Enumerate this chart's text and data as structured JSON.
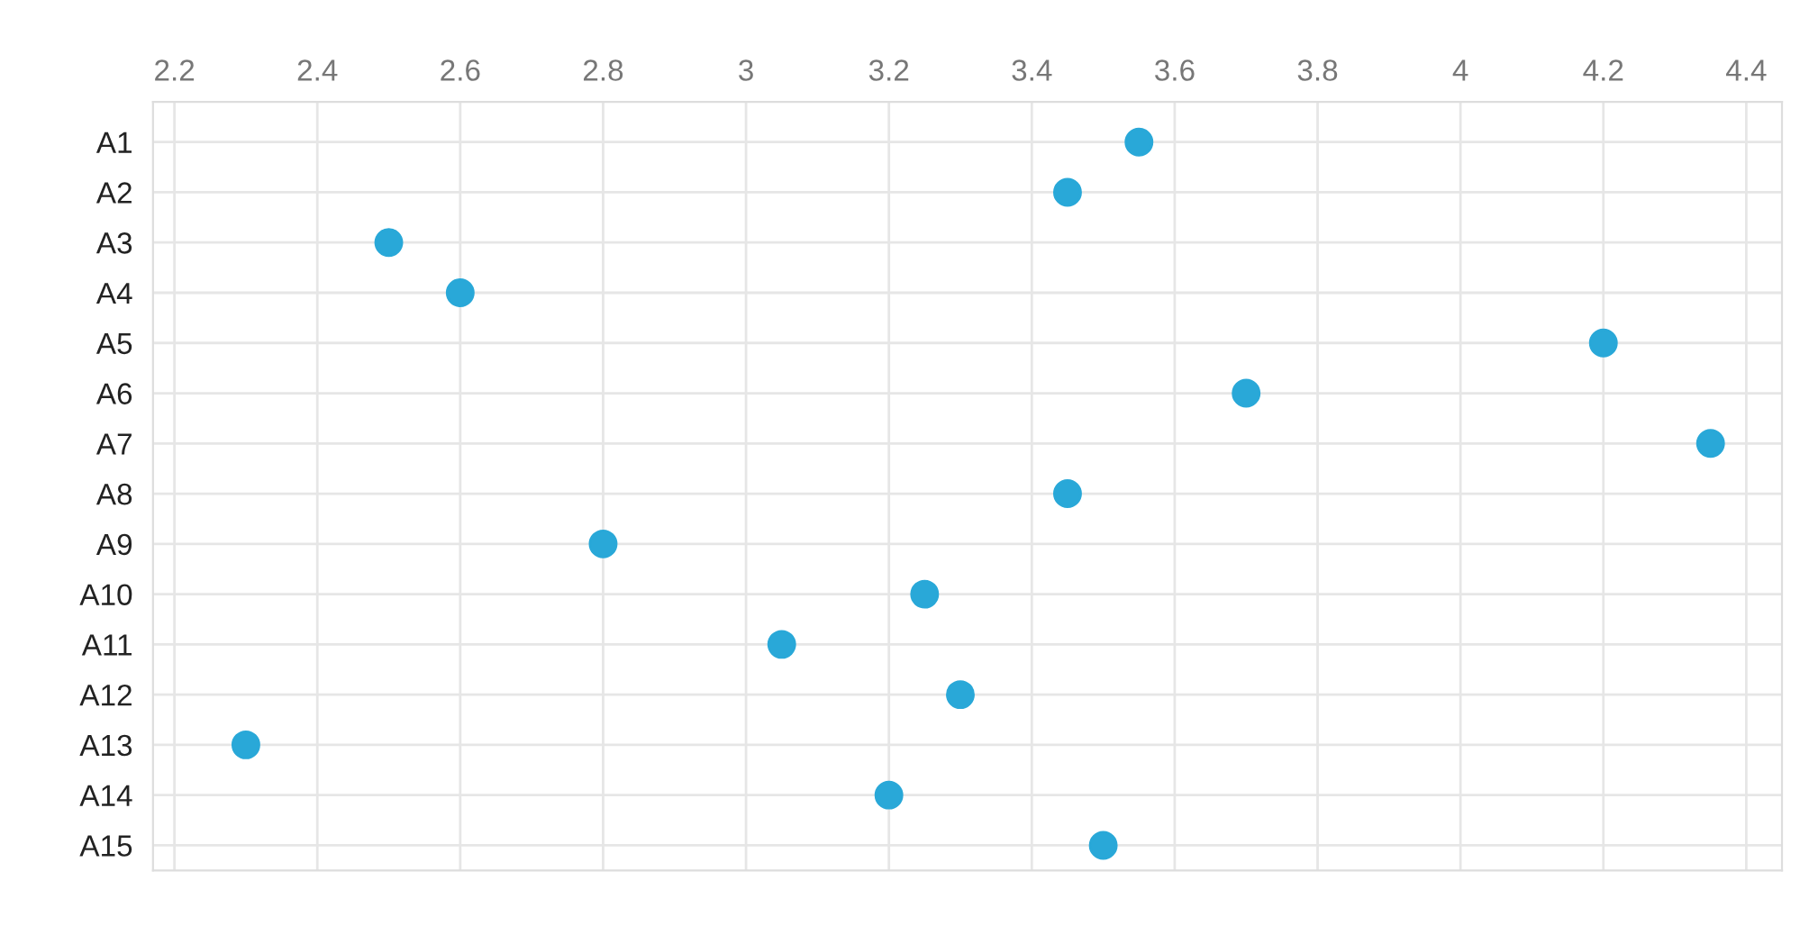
{
  "chart_data": {
    "type": "scatter",
    "orientation": "horizontal",
    "categories": [
      "A1",
      "A2",
      "A3",
      "A4",
      "A5",
      "A6",
      "A7",
      "A8",
      "A9",
      "A10",
      "A11",
      "A12",
      "A13",
      "A14",
      "A15"
    ],
    "values": [
      3.55,
      3.45,
      2.5,
      2.6,
      4.2,
      3.7,
      4.35,
      3.45,
      2.8,
      3.25,
      3.05,
      3.3,
      2.3,
      3.2,
      3.5
    ],
    "color": "#29a8d8",
    "marker": "circle",
    "xlim": [
      2.17,
      4.45
    ],
    "xticks": [
      2.2,
      2.4,
      2.6,
      2.8,
      3,
      3.2,
      3.4,
      3.6,
      3.8,
      4,
      4.2,
      4.4
    ],
    "grid": true
  }
}
